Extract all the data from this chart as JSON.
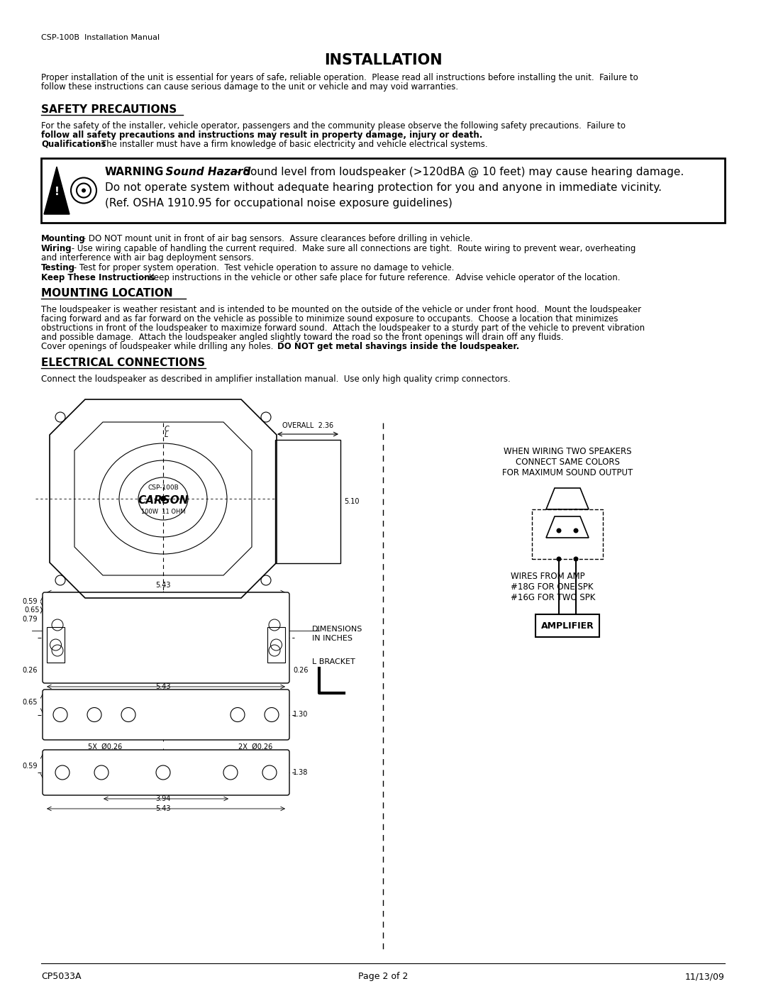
{
  "page_header_left": "CSP-100B  Installation Manual",
  "page_title": "INSTALLATION",
  "para1_line1": "Proper installation of the unit is essential for years of safe, reliable operation.  Please read all instructions ",
  "para1_before": "before",
  "para1_line1b": " installing the unit.  Failure to",
  "para1_line2": "follow these instructions can cause serious damage to the unit or vehicle and may void warranties.",
  "section1_title": "SAFETY PRECAUTIONS",
  "sp_line1a": "For the safety of the installer, vehicle operator, passengers and the community please observe the following safety precautions.  ",
  "sp_line1b": "Failure to",
  "sp_line2": "follow all safety precautions and instructions may result in property damage, injury or death.",
  "sp_line3a": "Qualifications",
  "sp_line3b": " - The installer must have a firm knowledge of basic electricity and vehicle electrical systems.",
  "warn_line1a": "WARNING",
  "warn_line1b": "  Sound Hazard",
  "warn_line1c": " - Sound level from loudspeaker (>120dBA @ 10 feet) may cause hearing damage.",
  "warn_line2": "Do not operate system without adequate hearing protection for you and anyone in immediate vicinity.",
  "warn_line3": "(Ref. OSHA 1910.95 for occupational noise exposure guidelines)",
  "b1a": "Mounting",
  "b1b": " - DO NOT mount unit in front of air bag sensors.  Assure clearances before drilling in vehicle.",
  "b2a": "Wiring",
  "b2b": " - Use wiring capable of handling the current required.  Make sure all connections are tight.  Route wiring to prevent wear, overheating",
  "b2c": "and interference with air bag deployment sensors.",
  "b3a": "Testing",
  "b3b": " - Test for proper system operation.  Test vehicle operation to assure no damage to vehicle.",
  "b4a": "Keep These Instructions",
  "b4b": " - Keep instructions in the vehicle or other safe place for future reference.  Advise vehicle operator of the location.",
  "section2_title": "MOUNTING LOCATION",
  "ml_text": "The loudspeaker is weather resistant and is intended to be mounted on the outside of the vehicle or under front hood.  Mount the loudspeaker\nfacing forward and as far forward on the vehicle as possible to minimize sound exposure to occupants.  Choose a location that minimizes\nobstructions in front of the loudspeaker to maximize forward sound.  Attach the loudspeaker to a sturdy part of the vehicle to prevent vibration\nand possible damage.  Attach the loudspeaker angled slightly toward the road so the front openings will drain off any fluids.",
  "ml_last_a": "Cover openings of loudspeaker while drilling any holes.  ",
  "ml_last_b": "DO NOT get metal shavings inside the loudspeaker.",
  "section3_title": "ELECTRICAL CONNECTIONS",
  "ec_text": "Connect the loudspeaker as described in amplifier installation manual.  Use only high quality crimp connectors.",
  "page_footer_left": "CP5033A",
  "page_footer_center": "Page 2 of 2",
  "page_footer_right": "11/13/09",
  "bg_color": "#ffffff",
  "text_color": "#000000"
}
